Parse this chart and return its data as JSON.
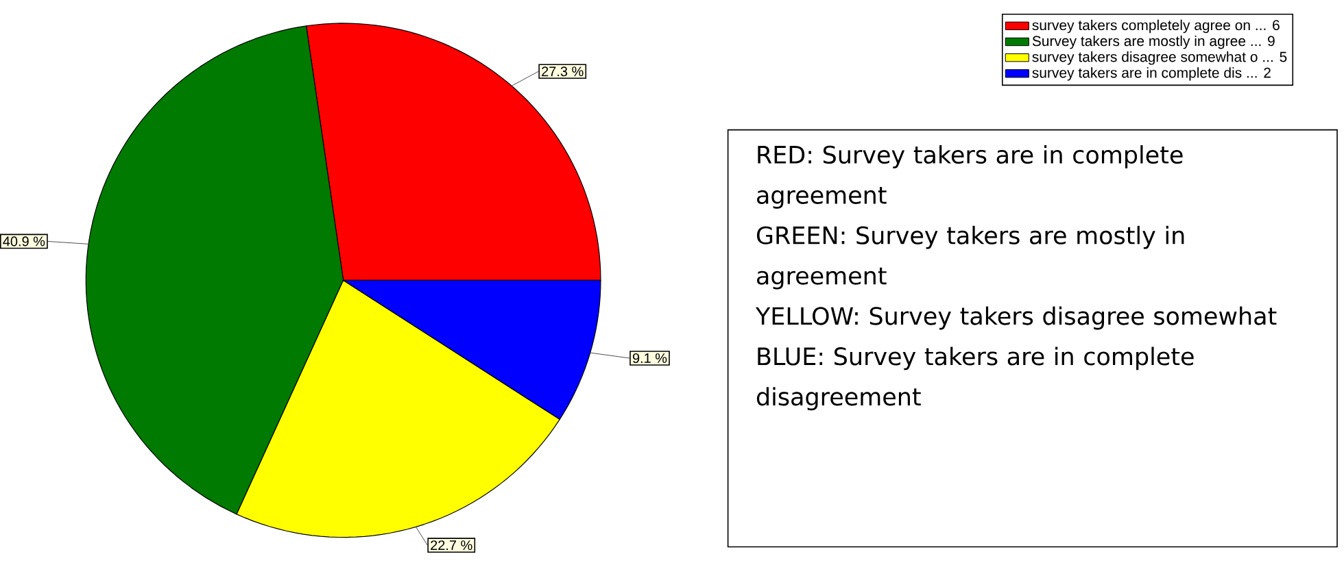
{
  "chart_data": {
    "type": "pie",
    "categories": [
      "survey takers completely agree on ...     6",
      "Survey takers are mostly in agree ...     9",
      "survey takers disagree somewhat o ...     5",
      "survey takers are in complete dis ...     2"
    ],
    "values": [
      27.3,
      40.9,
      22.7,
      9.1
    ],
    "value_labels": [
      "27.3 %",
      "40.9 %",
      "22.7 %",
      "9.1 %"
    ],
    "colors": [
      "#ff0000",
      "#007a00",
      "#ffff00",
      "#0000ff"
    ],
    "legend": "top right",
    "annotations": [
      "RED:  Survey takers are in complete agreement",
      "GREEN:  Survey takers are mostly in agreement",
      "YELLOW:  Survey takers disagree somewhat",
      "BLUE:  Survey takers are in complete disagreement"
    ]
  }
}
